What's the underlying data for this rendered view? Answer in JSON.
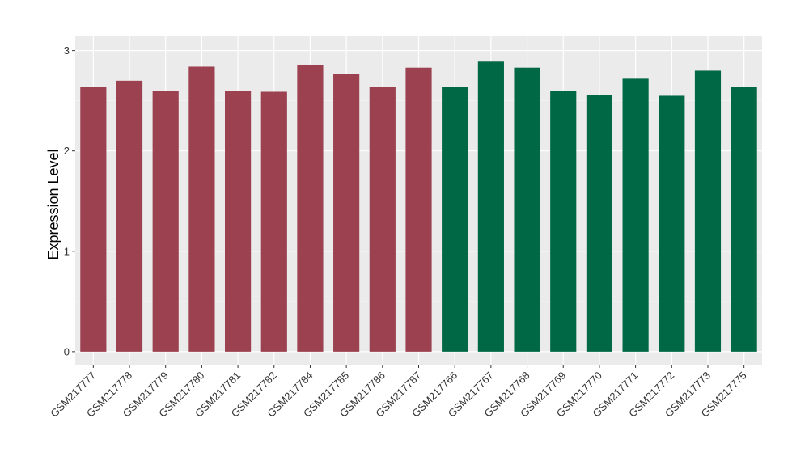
{
  "chart_data": {
    "type": "bar",
    "title": "",
    "xlabel": "",
    "ylabel": "Expression Level",
    "ylim": [
      -0.13,
      3.15
    ],
    "yticks": [
      0,
      1,
      2,
      3
    ],
    "grid": true,
    "categories": [
      "GSM217777",
      "GSM217778",
      "GSM217779",
      "GSM217780",
      "GSM217781",
      "GSM217782",
      "GSM217784",
      "GSM217785",
      "GSM217786",
      "GSM217787",
      "GSM217766",
      "GSM217767",
      "GSM217768",
      "GSM217769",
      "GSM217770",
      "GSM217771",
      "GSM217772",
      "GSM217773",
      "GSM217775"
    ],
    "values": [
      2.64,
      2.7,
      2.6,
      2.84,
      2.6,
      2.59,
      2.86,
      2.77,
      2.64,
      2.83,
      2.64,
      2.89,
      2.83,
      2.6,
      2.56,
      2.72,
      2.55,
      2.8,
      2.64
    ],
    "groups": [
      0,
      0,
      0,
      0,
      0,
      0,
      0,
      0,
      0,
      0,
      1,
      1,
      1,
      1,
      1,
      1,
      1,
      1,
      1
    ],
    "colors": [
      "#9b4150",
      "#006845"
    ],
    "panel_background": "#ebebeb"
  }
}
